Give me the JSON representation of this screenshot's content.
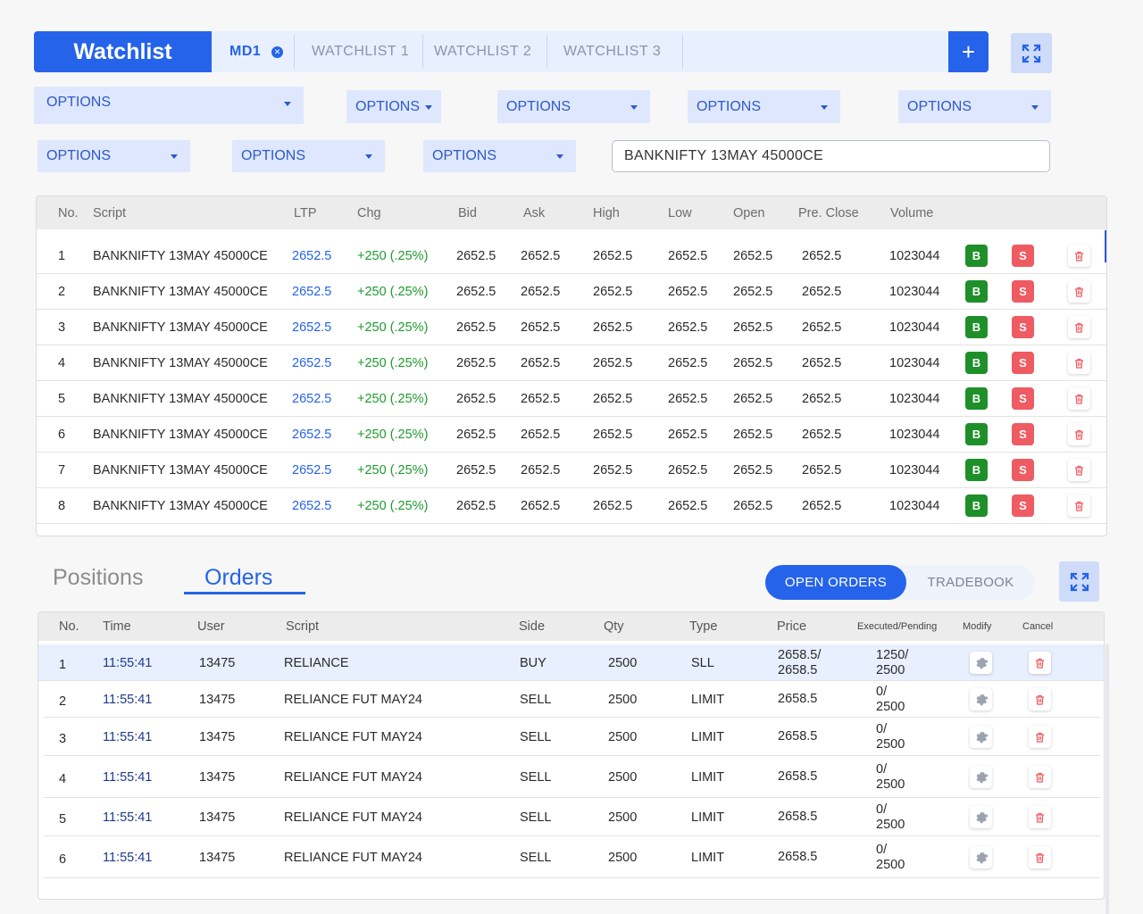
{
  "watchlist_tabs": {
    "title": "Watchlist",
    "tabs": [
      {
        "label": "MD1",
        "active": true
      },
      {
        "label": "WATCHLIST 1",
        "active": false
      },
      {
        "label": "WATCHLIST 2",
        "active": false
      },
      {
        "label": "WATCHLIST 3",
        "active": false
      }
    ],
    "add_icon": "plus-icon",
    "close_icon": "close-icon"
  },
  "filters": {
    "dropdowns": [
      "OPTIONS",
      "OPTIONS",
      "OPTIONS",
      "OPTIONS",
      "OPTIONS",
      "OPTIONS",
      "OPTIONS",
      "OPTIONS"
    ],
    "search_value": "BANKNIFTY 13MAY 45000CE"
  },
  "watchlist_table": {
    "headers": [
      "No.",
      "Script",
      "LTP",
      "Chg",
      "Bid",
      "Ask",
      "High",
      "Low",
      "Open",
      "Pre. Close",
      "Volume"
    ],
    "rows": [
      {
        "no": "1",
        "script": "BANKNIFTY 13MAY 45000CE",
        "ltp": "2652.5",
        "chg": "+250 (.25%)",
        "bid": "2652.5",
        "ask": "2652.5",
        "high": "2652.5",
        "low": "2652.5",
        "open": "2652.5",
        "pre_close": "2652.5",
        "volume": "1023044",
        "buy": "B",
        "sell": "S"
      },
      {
        "no": "2",
        "script": "BANKNIFTY 13MAY 45000CE",
        "ltp": "2652.5",
        "chg": "+250 (.25%)",
        "bid": "2652.5",
        "ask": "2652.5",
        "high": "2652.5",
        "low": "2652.5",
        "open": "2652.5",
        "pre_close": "2652.5",
        "volume": "1023044",
        "buy": "B",
        "sell": "S"
      },
      {
        "no": "3",
        "script": "BANKNIFTY 13MAY 45000CE",
        "ltp": "2652.5",
        "chg": "+250 (.25%)",
        "bid": "2652.5",
        "ask": "2652.5",
        "high": "2652.5",
        "low": "2652.5",
        "open": "2652.5",
        "pre_close": "2652.5",
        "volume": "1023044",
        "buy": "B",
        "sell": "S"
      },
      {
        "no": "4",
        "script": "BANKNIFTY 13MAY 45000CE",
        "ltp": "2652.5",
        "chg": "+250 (.25%)",
        "bid": "2652.5",
        "ask": "2652.5",
        "high": "2652.5",
        "low": "2652.5",
        "open": "2652.5",
        "pre_close": "2652.5",
        "volume": "1023044",
        "buy": "B",
        "sell": "S"
      },
      {
        "no": "5",
        "script": "BANKNIFTY 13MAY 45000CE",
        "ltp": "2652.5",
        "chg": "+250 (.25%)",
        "bid": "2652.5",
        "ask": "2652.5",
        "high": "2652.5",
        "low": "2652.5",
        "open": "2652.5",
        "pre_close": "2652.5",
        "volume": "1023044",
        "buy": "B",
        "sell": "S"
      },
      {
        "no": "6",
        "script": "BANKNIFTY 13MAY 45000CE",
        "ltp": "2652.5",
        "chg": "+250 (.25%)",
        "bid": "2652.5",
        "ask": "2652.5",
        "high": "2652.5",
        "low": "2652.5",
        "open": "2652.5",
        "pre_close": "2652.5",
        "volume": "1023044",
        "buy": "B",
        "sell": "S"
      },
      {
        "no": "7",
        "script": "BANKNIFTY 13MAY 45000CE",
        "ltp": "2652.5",
        "chg": "+250 (.25%)",
        "bid": "2652.5",
        "ask": "2652.5",
        "high": "2652.5",
        "low": "2652.5",
        "open": "2652.5",
        "pre_close": "2652.5",
        "volume": "1023044",
        "buy": "B",
        "sell": "S"
      },
      {
        "no": "8",
        "script": "BANKNIFTY 13MAY 45000CE",
        "ltp": "2652.5",
        "chg": "+250 (.25%)",
        "bid": "2652.5",
        "ask": "2652.5",
        "high": "2652.5",
        "low": "2652.5",
        "open": "2652.5",
        "pre_close": "2652.5",
        "volume": "1023044",
        "buy": "B",
        "sell": "S"
      }
    ]
  },
  "lower_tabs": {
    "positions": "Positions",
    "orders": "Orders",
    "active": "Orders"
  },
  "order_filter": {
    "open_orders": "OPEN ORDERS",
    "tradebook": "TRADEBOOK",
    "active": "OPEN ORDERS"
  },
  "orders_table": {
    "headers": [
      "No.",
      "Time",
      "User",
      "Script",
      "Side",
      "Qty",
      "Type",
      "Price",
      "Executed/Pending",
      "Modify",
      "Cancel"
    ],
    "rows": [
      {
        "no": "1",
        "time": "11:55:41",
        "user": "13475",
        "script": "RELIANCE",
        "side": "BUY",
        "qty": "2500",
        "type": "SLL",
        "price_1": "2658.5/",
        "price_2": "2658.5",
        "exec_1": "1250/",
        "exec_2": "2500",
        "selected": true
      },
      {
        "no": "2",
        "time": "11:55:41",
        "user": "13475",
        "script": "RELIANCE FUT MAY24",
        "side": "SELL",
        "qty": "2500",
        "type": "LIMIT",
        "price_1": "2658.5",
        "price_2": "",
        "exec_1": "0/",
        "exec_2": "2500",
        "selected": false
      },
      {
        "no": "3",
        "time": "11:55:41",
        "user": "13475",
        "script": "RELIANCE FUT MAY24",
        "side": "SELL",
        "qty": "2500",
        "type": "LIMIT",
        "price_1": "2658.5",
        "price_2": "",
        "exec_1": "0/",
        "exec_2": "2500",
        "selected": false
      },
      {
        "no": "4",
        "time": "11:55:41",
        "user": "13475",
        "script": "RELIANCE FUT MAY24",
        "side": "SELL",
        "qty": "2500",
        "type": "LIMIT",
        "price_1": "2658.5",
        "price_2": "",
        "exec_1": "0/",
        "exec_2": "2500",
        "selected": false
      },
      {
        "no": "5",
        "time": "11:55:41",
        "user": "13475",
        "script": "RELIANCE FUT MAY24",
        "side": "SELL",
        "qty": "2500",
        "type": "LIMIT",
        "price_1": "2658.5",
        "price_2": "",
        "exec_1": "0/",
        "exec_2": "2500",
        "selected": false
      },
      {
        "no": "6",
        "time": "11:55:41",
        "user": "13475",
        "script": "RELIANCE FUT MAY24",
        "side": "SELL",
        "qty": "2500",
        "type": "LIMIT",
        "price_1": "2658.5",
        "price_2": "",
        "exec_1": "0/",
        "exec_2": "2500",
        "selected": false
      }
    ]
  },
  "colors": {
    "primary": "#2563eb",
    "buy": "#1f8f2a",
    "sell": "#ef5b62",
    "gain": "#1e9a2e"
  }
}
